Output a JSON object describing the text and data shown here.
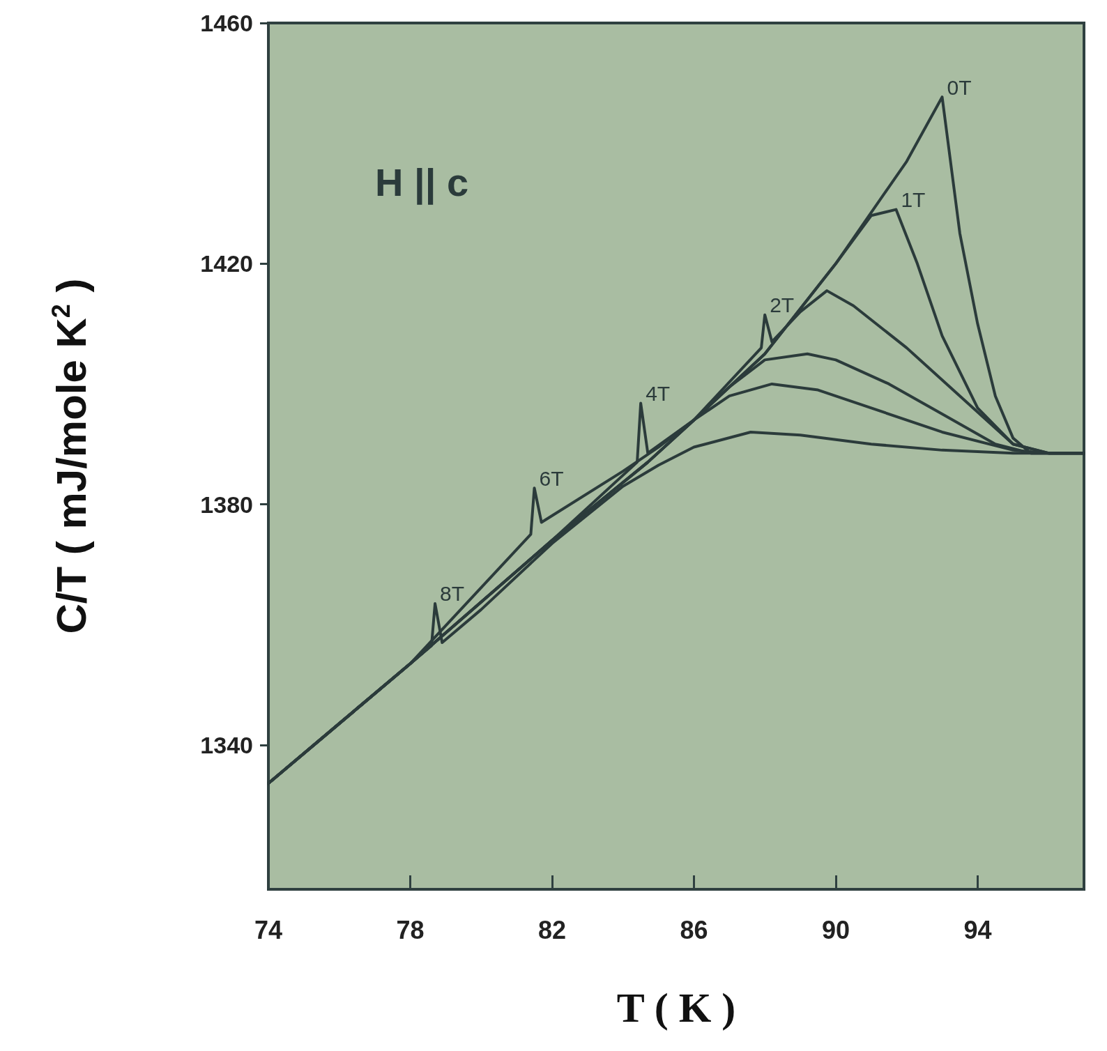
{
  "chart_data": {
    "type": "line",
    "xlabel": "T ( K )",
    "ylabel": "C/T ( mJ/mole K$^{2}$ )",
    "annotations": [
      "H || c"
    ],
    "xlim": [
      74,
      97
    ],
    "xticks": [
      74,
      78,
      82,
      86,
      90,
      94
    ],
    "ylim": [
      1316,
      1460
    ],
    "yticks": [
      1340,
      1380,
      1420,
      1460
    ],
    "grid": false,
    "legend": false,
    "marker": "none",
    "line_style": "solid",
    "series": [
      {
        "name": "0T",
        "color": "#2b3b3b",
        "x": [
          74,
          78,
          82,
          84.7,
          86,
          88,
          90,
          92,
          93,
          93.5,
          94,
          94.5,
          95,
          95.5,
          97
        ],
        "values": [
          1333.6,
          1353.5,
          1374,
          1387,
          1394,
          1405,
          1420,
          1437,
          1447.7,
          1425,
          1410,
          1398,
          1391,
          1388.5,
          1388.5
        ]
      },
      {
        "name": "1T",
        "color": "#2b3b3b",
        "x": [
          74,
          78,
          82,
          84.7,
          86,
          88,
          90,
          91,
          91.7,
          92.3,
          93,
          94,
          95,
          96,
          97
        ],
        "values": [
          1333.6,
          1353.5,
          1374,
          1387,
          1394,
          1405,
          1420,
          1428,
          1429,
          1420,
          1408,
          1396,
          1390,
          1388.5,
          1388.5
        ]
      },
      {
        "name": "2T",
        "color": "#2b3b3b",
        "x": [
          74,
          78,
          82,
          84.7,
          86,
          87.9,
          88,
          88.2,
          89,
          89.75,
          90.5,
          92,
          93.5,
          95,
          96,
          97
        ],
        "values": [
          1333.6,
          1353.5,
          1374,
          1387,
          1394,
          1406,
          1411.5,
          1407,
          1412,
          1415.5,
          1413,
          1406,
          1398,
          1390,
          1388.5,
          1388.5
        ]
      },
      {
        "name": "4T",
        "color": "#2b3b3b",
        "x": [
          74,
          78,
          82,
          84.4,
          84.5,
          84.7,
          86,
          87,
          88,
          89.2,
          90,
          91.5,
          93,
          94.5,
          95.5,
          97
        ],
        "values": [
          1333.6,
          1353.5,
          1374,
          1387,
          1396.8,
          1388.5,
          1394,
          1399.5,
          1404,
          1405,
          1404,
          1400,
          1395,
          1390,
          1388.5,
          1388.5
        ]
      },
      {
        "name": "6T",
        "color": "#2b3b3b",
        "x": [
          74,
          78,
          81.4,
          81.5,
          81.7,
          84,
          85,
          86,
          87,
          88.2,
          89.5,
          91,
          93,
          95,
          96,
          97
        ],
        "values": [
          1333.6,
          1353.5,
          1375,
          1382.7,
          1377,
          1385.5,
          1389.5,
          1394,
          1398,
          1400,
          1399,
          1396,
          1392,
          1389,
          1388.5,
          1388.5
        ]
      },
      {
        "name": "8T",
        "color": "#2b3b3b",
        "x": [
          74,
          76,
          78,
          78.6,
          78.7,
          78.9,
          80,
          82,
          84,
          85,
          86,
          87.6,
          89,
          91,
          93,
          95,
          97
        ],
        "values": [
          1333.6,
          1343.6,
          1353.5,
          1356.5,
          1363.5,
          1357,
          1362.5,
          1373.5,
          1383,
          1386.5,
          1389.5,
          1392,
          1391.5,
          1390,
          1389,
          1388.5,
          1388.5
        ]
      }
    ]
  }
}
